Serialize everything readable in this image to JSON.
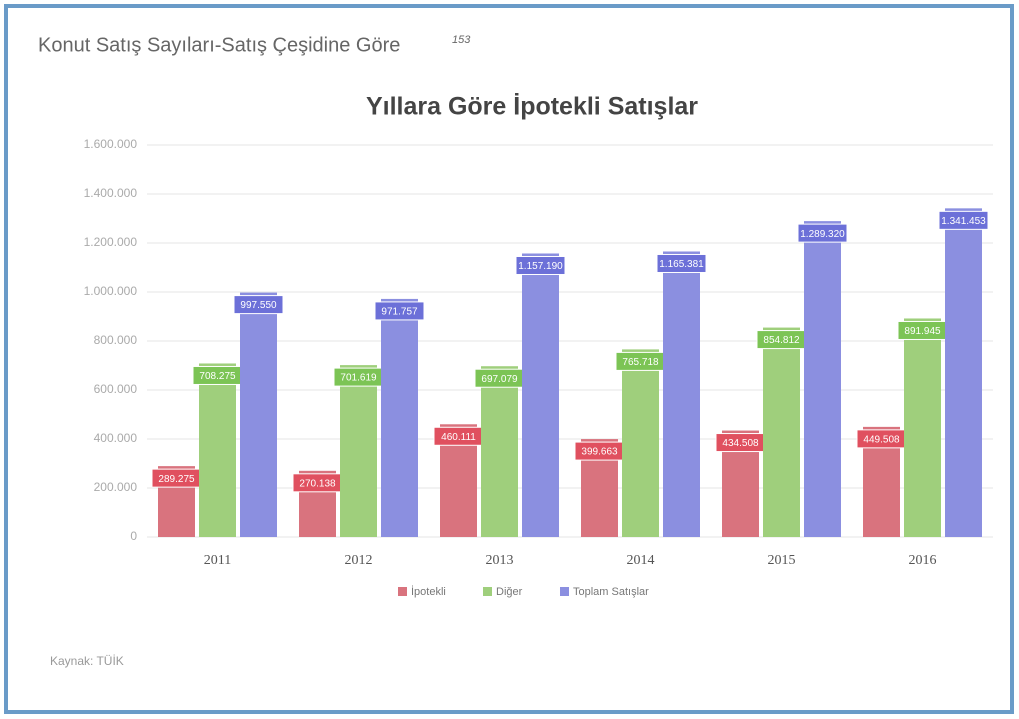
{
  "header": {
    "title": "Konut Satış Sayıları-Satış Çeşidine Göre",
    "footnote": "153"
  },
  "source": "Kaynak: TÜİK",
  "chart_data": {
    "type": "bar",
    "title": "Yıllara Göre İpotekli Satışlar",
    "categories": [
      "2011",
      "2012",
      "2013",
      "2014",
      "2015",
      "2016"
    ],
    "series": [
      {
        "name": "İpotekli",
        "color": "#d9737e",
        "label_color": "#e0505f",
        "values": [
          289275,
          270138,
          460111,
          399663,
          434508,
          449508
        ],
        "value_labels": [
          "289.275",
          "270.138",
          "460.111",
          "399.663",
          "434.508",
          "449.508"
        ]
      },
      {
        "name": "Diğer",
        "color": "#9fcf7c",
        "label_color": "#7cc455",
        "values": [
          708275,
          701619,
          697079,
          765718,
          854812,
          891945
        ],
        "value_labels": [
          "708.275",
          "701.619",
          "697.079",
          "765.718",
          "854.812",
          "891.945"
        ]
      },
      {
        "name": "Toplam Satışlar",
        "color": "#8b8fe0",
        "label_color": "#6c70d8",
        "values": [
          997550,
          971757,
          1157190,
          1165381,
          1289320,
          1341453
        ],
        "value_labels": [
          "997.550",
          "971.757",
          "1.157.190",
          "1.165.381",
          "1.289.320",
          "1.341.453"
        ]
      }
    ],
    "ylim": [
      0,
      1600000
    ],
    "yticks": [
      0,
      {
        "value": 200000,
        "label": "200.000"
      },
      {
        "value": 400000,
        "label": "400.000"
      },
      {
        "value": 600000,
        "label": "600.000"
      },
      {
        "value": 800000,
        "label": "800.000"
      },
      {
        "value": 1000000,
        "label": "1.000.000"
      },
      {
        "value": 1200000,
        "label": "1.200.000"
      },
      {
        "value": 1400000,
        "label": "1.400.000"
      },
      {
        "value": 1600000,
        "label": "1.600.000"
      }
    ],
    "grid": true,
    "legend": "bottom"
  }
}
